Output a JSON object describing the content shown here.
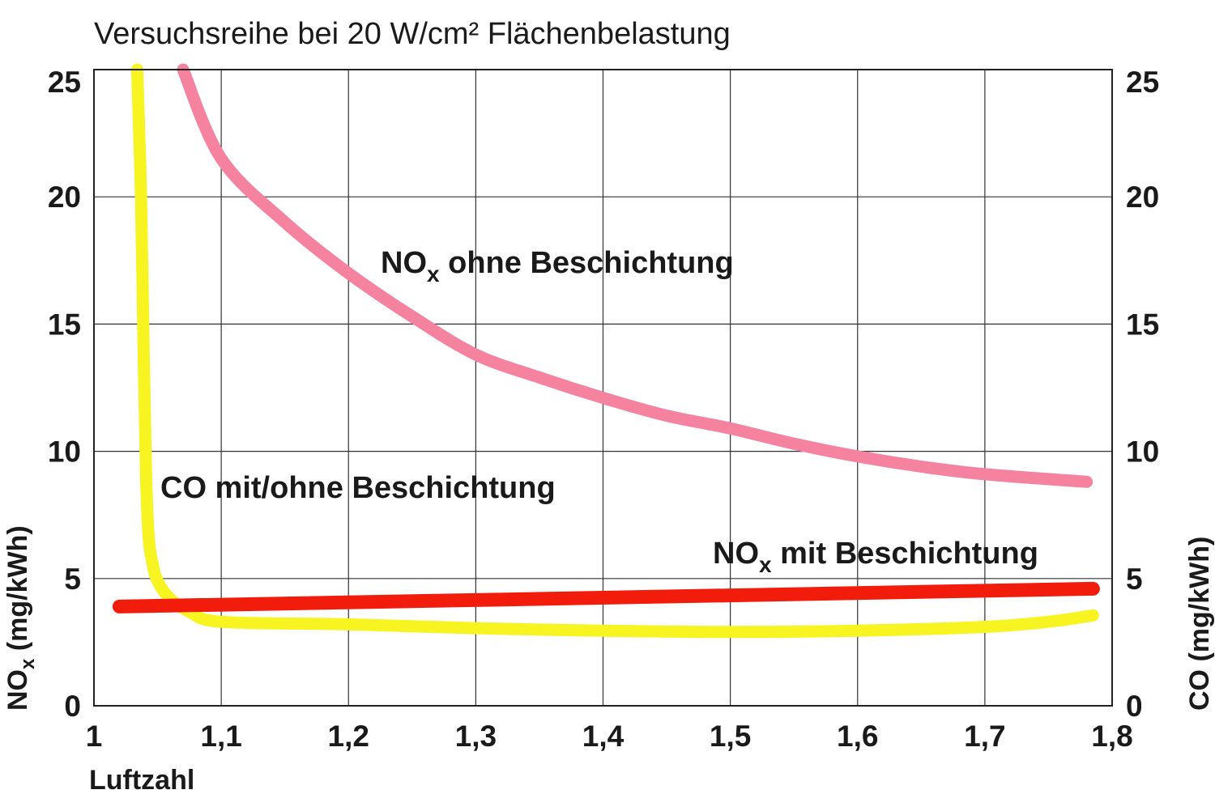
{
  "chart_data": {
    "type": "line",
    "title": "Versuchsreihe bei 20 W/cm² Flächenbelastung",
    "xlabel": "Luftzahl",
    "ylabel_left": {
      "main": "NO",
      "sub": "x",
      "unit": " (mg/kWh)"
    },
    "ylabel_right": "CO (mg/kWh)",
    "xlim": [
      1.0,
      1.8
    ],
    "ylim": [
      0,
      25
    ],
    "x_ticks": [
      1.0,
      1.1,
      1.2,
      1.3,
      1.4,
      1.5,
      1.6,
      1.7,
      1.8
    ],
    "x_tick_labels": [
      "1",
      "1,1",
      "1,2",
      "1,3",
      "1,4",
      "1,5",
      "1,6",
      "1,7",
      "1,8"
    ],
    "y_ticks": [
      0,
      5,
      10,
      15,
      20,
      25
    ],
    "y_tick_labels": [
      "0",
      "5",
      "10",
      "15",
      "20",
      "25"
    ],
    "grid": true,
    "series": [
      {
        "key": "nox_ohne",
        "name": {
          "main": "NO",
          "sub": "x",
          "rest": " ohne Beschichtung"
        },
        "color": "#f5829f",
        "x": [
          1.07,
          1.1,
          1.15,
          1.2,
          1.25,
          1.3,
          1.35,
          1.4,
          1.45,
          1.5,
          1.55,
          1.6,
          1.65,
          1.7,
          1.78
        ],
        "y": [
          25.0,
          21.5,
          19.0,
          17.0,
          15.3,
          13.8,
          12.9,
          12.1,
          11.4,
          10.9,
          10.3,
          9.8,
          9.4,
          9.1,
          8.8
        ]
      },
      {
        "key": "co",
        "name": {
          "main": "CO mit/ohne Beschichtung",
          "sub": "",
          "rest": ""
        },
        "color": "#f7f422",
        "x": [
          1.034,
          1.037,
          1.039,
          1.041,
          1.043,
          1.046,
          1.05,
          1.06,
          1.075,
          1.1,
          1.2,
          1.3,
          1.4,
          1.5,
          1.6,
          1.7,
          1.75,
          1.785
        ],
        "y": [
          25.0,
          20.0,
          14.0,
          9.0,
          6.6,
          5.6,
          4.9,
          4.2,
          3.7,
          3.3,
          3.2,
          3.05,
          2.95,
          2.9,
          2.95,
          3.1,
          3.3,
          3.55
        ]
      },
      {
        "key": "nox_mit",
        "name": {
          "main": "NO",
          "sub": "x",
          "rest": " mit Beschichtung"
        },
        "color": "#f21c0d",
        "x": [
          1.02,
          1.785
        ],
        "y": [
          3.9,
          4.6
        ]
      }
    ]
  }
}
